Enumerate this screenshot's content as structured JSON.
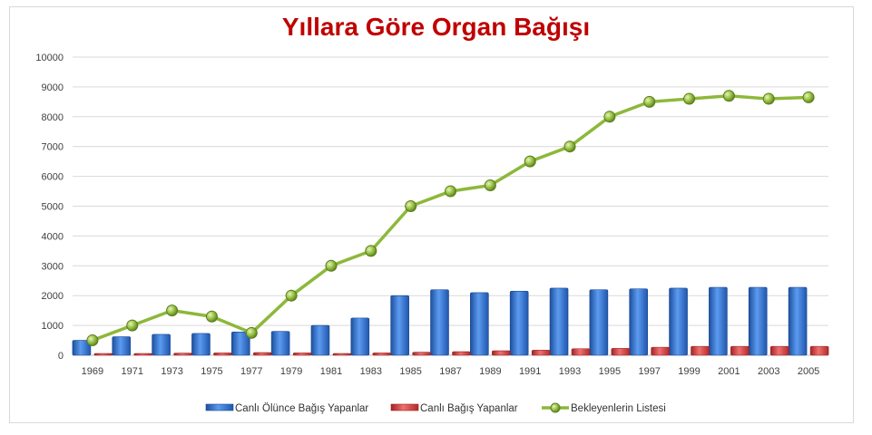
{
  "chart_data": {
    "type": "bar",
    "title": "Yıllara Göre Organ Bağışı",
    "categories": [
      "1969",
      "1971",
      "1973",
      "1975",
      "1977",
      "1979",
      "1981",
      "1983",
      "1985",
      "1987",
      "1989",
      "1991",
      "1993",
      "1995",
      "1997",
      "1999",
      "2001",
      "2003",
      "2005"
    ],
    "series": [
      {
        "name": "Canlı Ölünce Bağış Yapanlar",
        "type": "bar",
        "color": "#2f6fd6",
        "values": [
          500,
          620,
          700,
          730,
          780,
          800,
          1000,
          1250,
          2000,
          2200,
          2100,
          2150,
          2250,
          2200,
          2230,
          2250,
          2280,
          2280,
          2280
        ]
      },
      {
        "name": "Canlı Bağış Yapanlar",
        "type": "bar",
        "color": "#d93b3b",
        "values": [
          60,
          60,
          70,
          80,
          90,
          80,
          60,
          80,
          100,
          120,
          150,
          170,
          220,
          230,
          270,
          300,
          300,
          300,
          300
        ]
      },
      {
        "name": "Bekleyenlerin Listesi",
        "type": "line",
        "color": "#8db83a",
        "values": [
          500,
          1000,
          1500,
          1300,
          750,
          2000,
          3000,
          3500,
          5000,
          5500,
          5700,
          6500,
          7000,
          8000,
          8500,
          8600,
          8700,
          8600,
          8650
        ]
      }
    ],
    "ylim": [
      0,
      10000
    ],
    "yticks": [
      "0",
      "1000",
      "2000",
      "3000",
      "4000",
      "5000",
      "6000",
      "7000",
      "8000",
      "9000",
      "10000"
    ],
    "xlabel": "",
    "ylabel": "",
    "grid": true,
    "legend_position": "bottom",
    "title_color": "#c00000"
  }
}
